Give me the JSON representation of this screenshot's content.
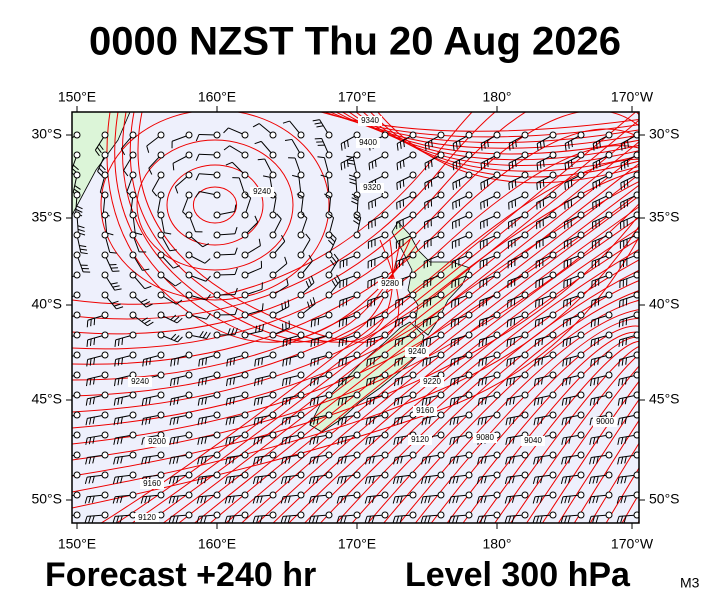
{
  "header": {
    "title": "0000 NZST Thu 20 Aug 2026"
  },
  "map": {
    "top_labels": [
      "150°E",
      "160°E",
      "170°E",
      "180°",
      "170°W"
    ],
    "bottom_labels": [
      "150°E",
      "160°E",
      "170°E",
      "180°",
      "170°W"
    ],
    "left_labels": [
      "30°S",
      "35°S",
      "40°S",
      "45°S",
      "50°S"
    ],
    "right_labels": [
      "30°S",
      "35°S",
      "40°S",
      "45°S",
      "50°S"
    ],
    "contour_labels": [
      "9340",
      "9400",
      "9320",
      "9240",
      "9280",
      "9240",
      "9240",
      "9220",
      "9200",
      "9160",
      "9120",
      "9160",
      "9120",
      "9080",
      "9040",
      "9000"
    ]
  },
  "footer": {
    "forecast": "Forecast +240 hr",
    "level": "Level 300 hPa",
    "code": "M3"
  }
}
